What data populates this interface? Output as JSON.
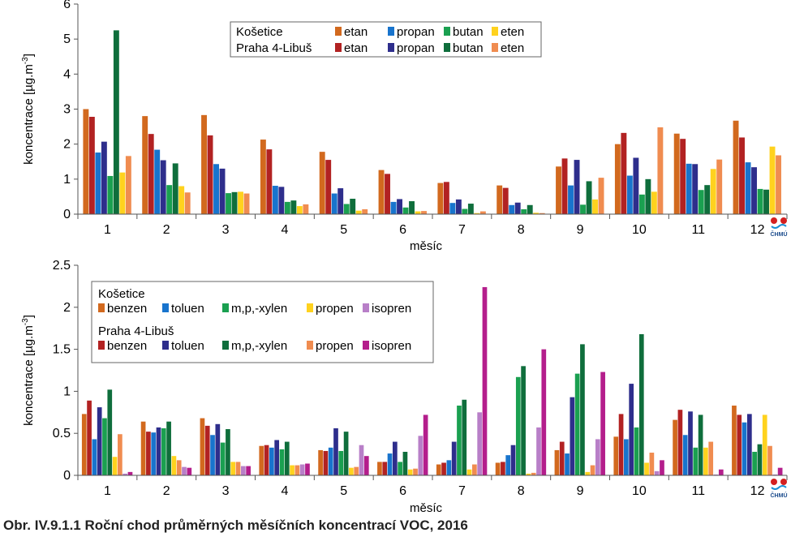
{
  "caption": "Obr. IV.9.1.1  Roční chod průměrných měsíčních koncentrací VOC, 2016",
  "logo_text": "ČHMÚ",
  "colors": {
    "kos_orange": "#d2691e",
    "kos_blue": "#1874cd",
    "kos_green": "#1aa050",
    "kos_yellow": "#ffd21e",
    "kos_purple": "#b87fc8",
    "lib_red": "#b22222",
    "lib_navy": "#2e2e8c",
    "lib_darkgreen": "#0f6e3c",
    "lib_salmon": "#f08c50",
    "lib_magenta": "#b41e8c"
  },
  "chart_data": [
    {
      "type": "bar",
      "xlabel": "měsíc",
      "ylabel": "koncentrace [µg.m-3]",
      "ylim": [
        0,
        6
      ],
      "yticks": [
        "0",
        "1",
        "2",
        "3",
        "4",
        "5",
        "6"
      ],
      "categories": [
        "1",
        "2",
        "3",
        "4",
        "5",
        "6",
        "7",
        "8",
        "9",
        "10",
        "11",
        "12"
      ],
      "legend": {
        "placement": "top-center",
        "groups": [
          {
            "label": "Košetice",
            "entries": [
              "etan",
              "propan",
              "butan",
              "eten"
            ]
          },
          {
            "label": "Praha 4-Libuš",
            "entries": [
              "etan",
              "propan",
              "butan",
              "eten"
            ]
          }
        ]
      },
      "series": [
        {
          "station": "Košetice",
          "name": "etan",
          "color": "#d2691e",
          "values": [
            3.0,
            2.8,
            2.83,
            2.13,
            1.78,
            1.26,
            0.89,
            0.82,
            1.36,
            2.0,
            2.3,
            2.67
          ]
        },
        {
          "station": "Praha 4-Libuš",
          "name": "etan",
          "color": "#b22222",
          "values": [
            2.78,
            2.29,
            2.25,
            1.85,
            1.55,
            1.15,
            0.92,
            0.75,
            1.59,
            2.32,
            2.15,
            2.19
          ]
        },
        {
          "station": "Košetice",
          "name": "propan",
          "color": "#1874cd",
          "values": [
            1.76,
            1.84,
            1.43,
            0.81,
            0.59,
            0.35,
            0.32,
            0.26,
            0.82,
            1.1,
            1.44,
            1.48
          ]
        },
        {
          "station": "Praha 4-Libuš",
          "name": "propan",
          "color": "#2e2e8c",
          "values": [
            2.07,
            1.54,
            1.3,
            0.78,
            0.74,
            0.43,
            0.42,
            0.33,
            1.55,
            1.61,
            1.43,
            1.34
          ]
        },
        {
          "station": "Košetice",
          "name": "butan",
          "color": "#1aa050",
          "values": [
            1.09,
            0.83,
            0.6,
            0.35,
            0.29,
            0.19,
            0.15,
            0.14,
            0.27,
            0.56,
            0.69,
            0.72
          ]
        },
        {
          "station": "Praha 4-Libuš",
          "name": "butan",
          "color": "#0f6e3c",
          "values": [
            5.25,
            1.45,
            0.63,
            0.39,
            0.44,
            0.37,
            0.3,
            0.26,
            0.94,
            1.0,
            0.83,
            0.7
          ]
        },
        {
          "station": "Košetice",
          "name": "eten",
          "color": "#ffd21e",
          "values": [
            1.19,
            0.8,
            0.64,
            0.23,
            0.1,
            0.08,
            0.03,
            0.04,
            0.42,
            0.64,
            1.29,
            1.93
          ]
        },
        {
          "station": "Praha 4-Libuš",
          "name": "eten",
          "color": "#f08c50",
          "values": [
            1.66,
            0.62,
            0.59,
            0.28,
            0.14,
            0.09,
            0.08,
            0.03,
            1.04,
            2.48,
            1.56,
            1.68
          ]
        }
      ]
    },
    {
      "type": "bar",
      "xlabel": "měsíc",
      "ylabel": "koncentrace [µg.m-3]",
      "ylim": [
        0,
        2.5
      ],
      "yticks": [
        "0",
        "0.5",
        "1",
        "1.5",
        "2",
        "2.5"
      ],
      "categories": [
        "1",
        "2",
        "3",
        "4",
        "5",
        "6",
        "7",
        "8",
        "9",
        "10",
        "11",
        "12"
      ],
      "legend": {
        "placement": "top-left",
        "groups": [
          {
            "label": "Košetice",
            "entries": [
              "benzen",
              "toluen",
              "m,p,-xylen",
              "propen",
              "isopren"
            ]
          },
          {
            "label": "Praha 4-Libuš",
            "entries": [
              "benzen",
              "toluen",
              "m,p,-xylen",
              "propen",
              "isopren"
            ]
          }
        ]
      },
      "series": [
        {
          "station": "Košetice",
          "name": "benzen",
          "color": "#d2691e",
          "values": [
            0.73,
            0.64,
            0.68,
            0.35,
            0.3,
            0.16,
            0.13,
            0.15,
            0.3,
            0.46,
            0.66,
            0.83
          ]
        },
        {
          "station": "Praha 4-Libuš",
          "name": "benzen",
          "color": "#b22222",
          "values": [
            0.89,
            0.52,
            0.59,
            0.36,
            0.29,
            0.16,
            0.15,
            0.16,
            0.4,
            0.73,
            0.78,
            0.72
          ]
        },
        {
          "station": "Košetice",
          "name": "toluen",
          "color": "#1874cd",
          "values": [
            0.43,
            0.51,
            0.48,
            0.33,
            0.33,
            0.26,
            0.18,
            0.24,
            0.26,
            0.43,
            0.48,
            0.63
          ]
        },
        {
          "station": "Praha 4-Libuš",
          "name": "toluen",
          "color": "#2e2e8c",
          "values": [
            0.81,
            0.57,
            0.61,
            0.42,
            0.56,
            0.4,
            0.4,
            0.36,
            0.93,
            1.09,
            0.76,
            0.73
          ]
        },
        {
          "station": "Košetice",
          "name": "m,p,-xylen",
          "color": "#1aa050",
          "values": [
            0.68,
            0.56,
            0.39,
            0.31,
            0.29,
            0.16,
            0.83,
            1.17,
            1.21,
            0.57,
            0.33,
            0.28
          ]
        },
        {
          "station": "Praha 4-Libuš",
          "name": "m,p,-xylen",
          "color": "#0f6e3c",
          "values": [
            1.02,
            0.64,
            0.55,
            0.4,
            0.52,
            0.28,
            0.9,
            1.3,
            1.56,
            1.68,
            0.72,
            0.37
          ]
        },
        {
          "station": "Košetice",
          "name": "propen",
          "color": "#ffd21e",
          "values": [
            0.22,
            0.23,
            0.16,
            0.12,
            0.09,
            0.07,
            0.07,
            0.02,
            0.04,
            0.15,
            0.33,
            0.72
          ]
        },
        {
          "station": "Praha 4-Libuš",
          "name": "propen",
          "color": "#f08c50",
          "values": [
            0.49,
            0.18,
            0.16,
            0.12,
            0.1,
            0.08,
            0.13,
            0.03,
            0.12,
            0.27,
            0.4,
            0.35
          ]
        },
        {
          "station": "Košetice",
          "name": "isopren",
          "color": "#b87fc8",
          "values": [
            0.02,
            0.1,
            0.11,
            0.13,
            0.36,
            0.47,
            0.75,
            0.57,
            0.43,
            0.05,
            0.01,
            0.01
          ]
        },
        {
          "station": "Praha 4-Libuš",
          "name": "isopren",
          "color": "#b41e8c",
          "values": [
            0.04,
            0.09,
            0.11,
            0.14,
            0.23,
            0.72,
            2.24,
            1.5,
            1.23,
            0.18,
            0.07,
            0.09
          ]
        }
      ]
    }
  ]
}
